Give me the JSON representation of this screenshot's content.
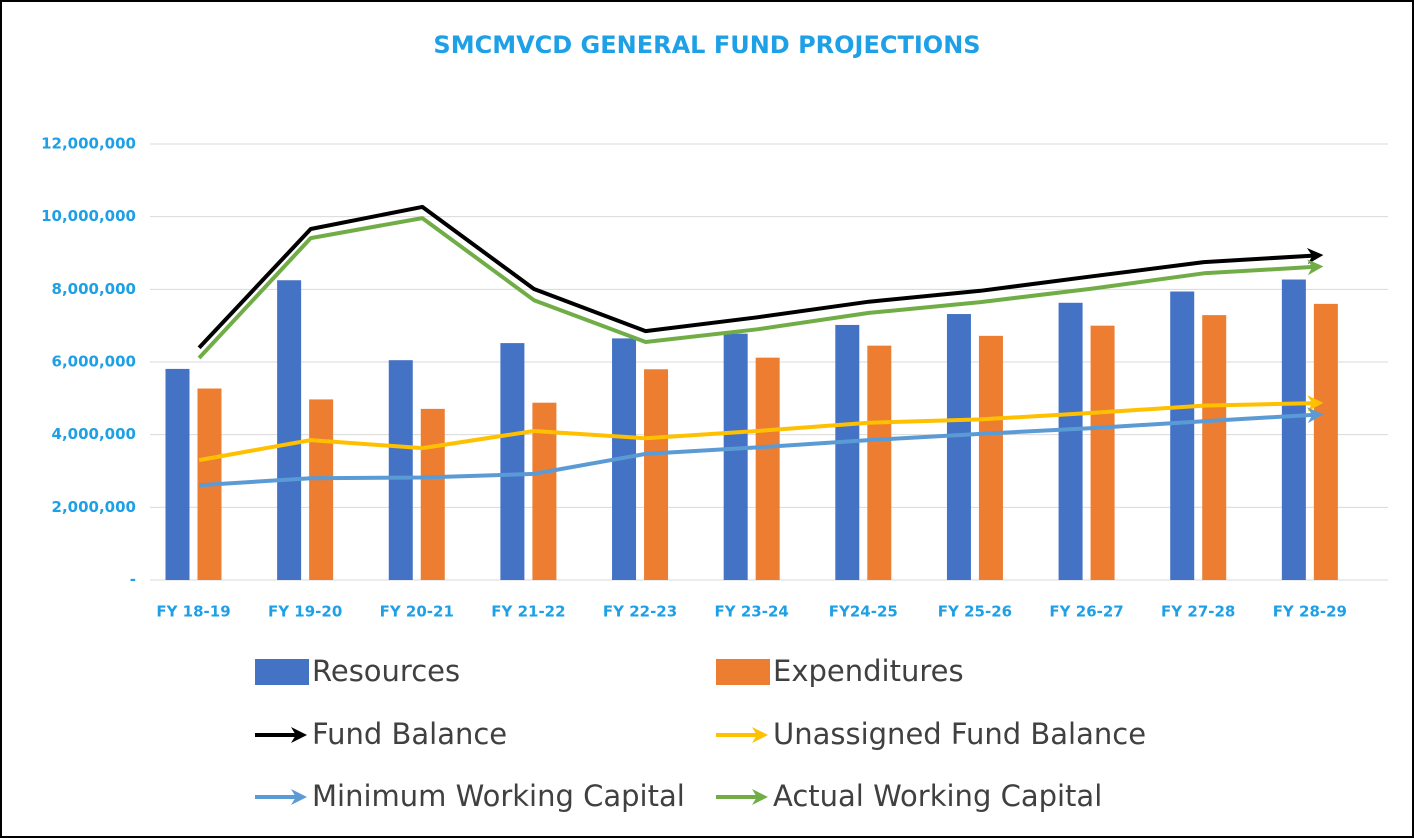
{
  "chart_data": {
    "type": "bar",
    "title": "SMCMVCD GENERAL FUND PROJECTIONS",
    "categories": [
      "FY 18-19",
      "FY 19-20",
      "FY 20-21",
      "FY 21-22",
      "FY 22-23",
      "FY 23-24",
      "FY24-25",
      "FY 25-26",
      "FY 26-27",
      "FY 27-28",
      "FY 28-29"
    ],
    "series": [
      {
        "name": "Resources",
        "type": "bar",
        "color": "#4472c4",
        "values": [
          5810000,
          8250000,
          6050000,
          6520000,
          6650000,
          6780000,
          7020000,
          7320000,
          7630000,
          7940000,
          8270000
        ]
      },
      {
        "name": "Expenditures",
        "type": "bar",
        "color": "#ed7d31",
        "values": [
          5270000,
          4970000,
          4710000,
          4880000,
          5800000,
          6120000,
          6450000,
          6720000,
          7000000,
          7290000,
          7600000
        ]
      },
      {
        "name": "Fund Balance",
        "type": "line",
        "color": "#000000",
        "values": [
          6390000,
          9660000,
          10270000,
          8010000,
          6850000,
          7230000,
          7660000,
          7960000,
          8360000,
          8750000,
          8930000
        ]
      },
      {
        "name": "Unassigned Fund Balance",
        "type": "line",
        "color": "#ffc000",
        "values": [
          3300000,
          3850000,
          3630000,
          4100000,
          3900000,
          4100000,
          4330000,
          4420000,
          4600000,
          4800000,
          4870000
        ]
      },
      {
        "name": "Minimum Working Capital",
        "type": "line",
        "color": "#5b9bd5",
        "values": [
          2610000,
          2800000,
          2820000,
          2920000,
          3470000,
          3650000,
          3850000,
          4020000,
          4180000,
          4370000,
          4550000
        ]
      },
      {
        "name": "Actual Working Capital",
        "type": "line",
        "color": "#70ad47",
        "values": [
          6110000,
          9410000,
          9960000,
          7700000,
          6550000,
          6900000,
          7350000,
          7650000,
          8020000,
          8440000,
          8620000
        ]
      }
    ],
    "ylim": [
      0,
      12000000
    ],
    "yticks": [
      {
        "value": 0,
        "label": "-"
      },
      {
        "value": 2000000,
        "label": "2,000,000"
      },
      {
        "value": 4000000,
        "label": "4,000,000"
      },
      {
        "value": 6000000,
        "label": "6,000,000"
      },
      {
        "value": 8000000,
        "label": "8,000,000"
      },
      {
        "value": 10000000,
        "label": "10,000,000"
      },
      {
        "value": 12000000,
        "label": "12,000,000"
      }
    ],
    "grid": true,
    "legend": "bottom"
  }
}
